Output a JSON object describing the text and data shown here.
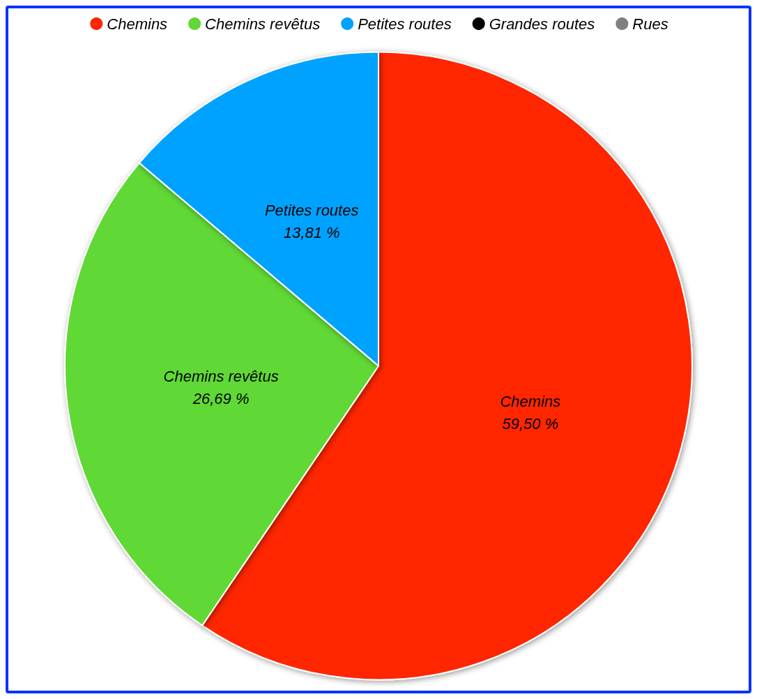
{
  "chart_data": {
    "type": "pie",
    "categories": [
      "Chemins",
      "Chemins revêtus",
      "Petites routes",
      "Grandes routes",
      "Rues"
    ],
    "values": [
      59.5,
      26.69,
      13.81,
      0,
      0
    ],
    "colors": [
      "#ff2600",
      "#61d836",
      "#00a2ff",
      "#000000",
      "#7f7f7f"
    ],
    "value_labels": [
      "59,50 %",
      "26,69 %",
      "13,81 %",
      null,
      null
    ],
    "legend": "top"
  }
}
